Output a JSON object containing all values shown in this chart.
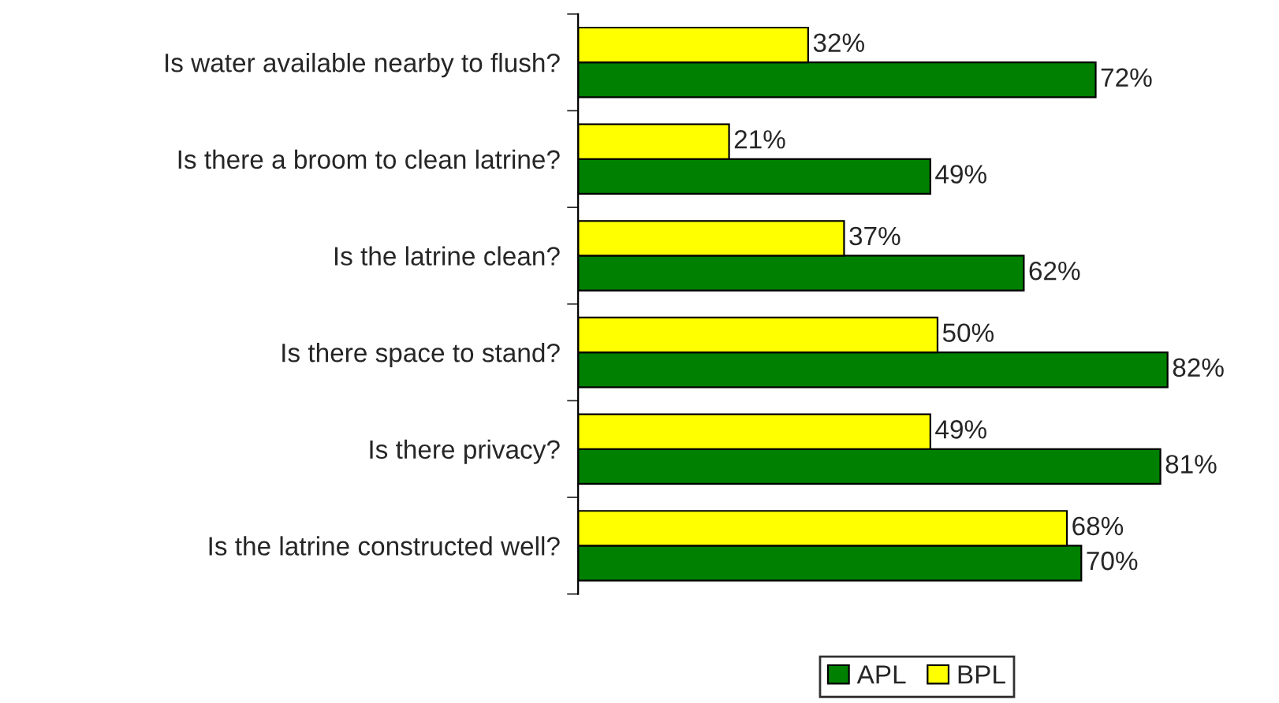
{
  "chart_data": {
    "type": "bar",
    "orientation": "horizontal",
    "categories": [
      "Is water available nearby to flush?",
      "Is there a broom to clean latrine?",
      "Is the latrine clean?",
      "Is there space to stand?",
      "Is there privacy?",
      "Is the latrine constructed well?"
    ],
    "series": [
      {
        "name": "APL",
        "color": "#008000",
        "values": [
          72,
          49,
          62,
          82,
          81,
          70
        ],
        "value_labels": [
          "72%",
          "49%",
          "62%",
          "82%",
          "81%",
          "70%"
        ]
      },
      {
        "name": "BPL",
        "color": "#ffff00",
        "values": [
          32,
          21,
          37,
          50,
          49,
          68
        ],
        "value_labels": [
          "32%",
          "21%",
          "37%",
          "50%",
          "49%",
          "68%"
        ]
      }
    ],
    "legend": "bottom",
    "grid": false
  }
}
